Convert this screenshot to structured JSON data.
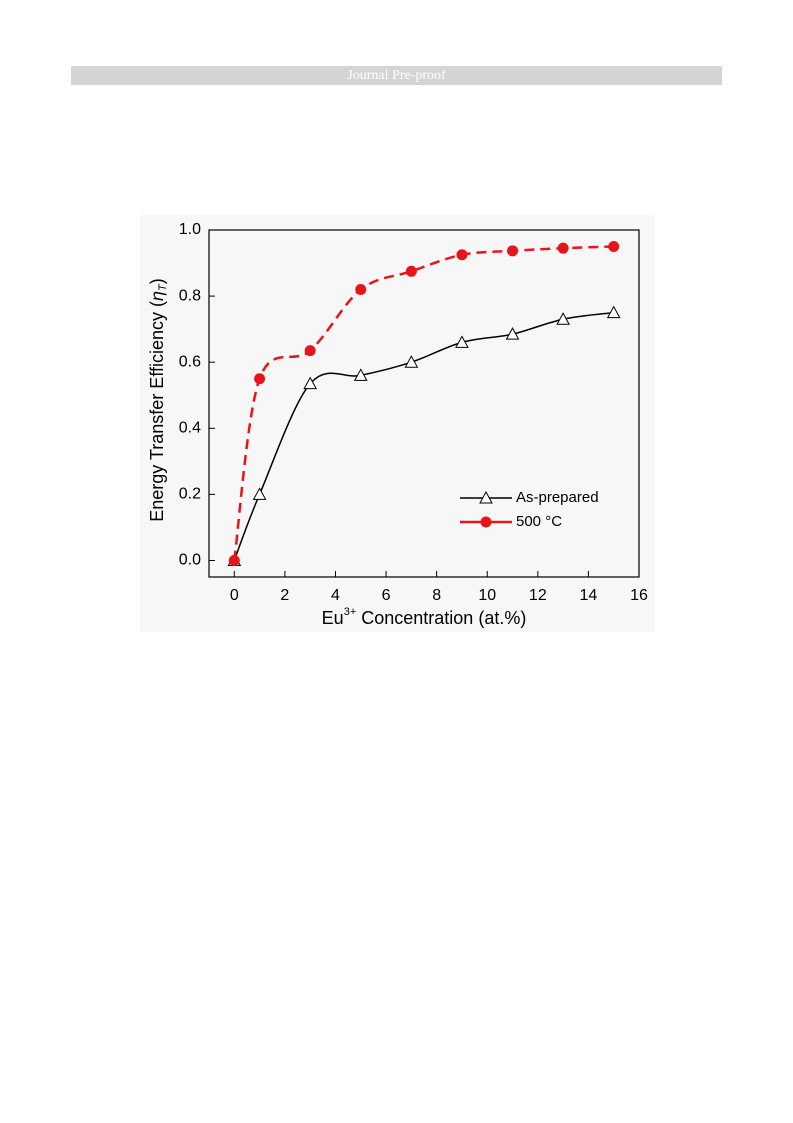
{
  "header": {
    "title": "Journal Pre-proof"
  },
  "chart_data": {
    "type": "line",
    "x_label": [
      "Eu",
      "3+",
      " Concentration (at.%)"
    ],
    "y_label": [
      "Energy Transfer Efficiency (",
      "η",
      "T",
      ")"
    ],
    "x": [
      0,
      1,
      3,
      5,
      7,
      9,
      11,
      13,
      15
    ],
    "series": [
      {
        "name": "As-prepared",
        "color": "#000000",
        "marker": "triangle",
        "line_style": "solid",
        "values": [
          0,
          0.2,
          0.535,
          0.56,
          0.6,
          0.66,
          0.685,
          0.73,
          0.75
        ]
      },
      {
        "name": "500 °C",
        "color": "#e8141c",
        "marker": "circle",
        "line_style": "dashed",
        "values": [
          0,
          0.55,
          0.635,
          0.82,
          0.875,
          0.925,
          0.937,
          0.945,
          0.95
        ]
      }
    ],
    "xlim": [
      -1,
      16
    ],
    "xticks": [
      0,
      2,
      4,
      6,
      8,
      10,
      12,
      14,
      16
    ],
    "ylim": [
      -0.05,
      1.0
    ],
    "yticks": [
      {
        "value": 0,
        "label": "0.0"
      },
      0.2,
      0.4,
      0.6,
      0.8,
      {
        "value": 1,
        "label": "1.0"
      }
    ],
    "legend": "lower-right"
  }
}
